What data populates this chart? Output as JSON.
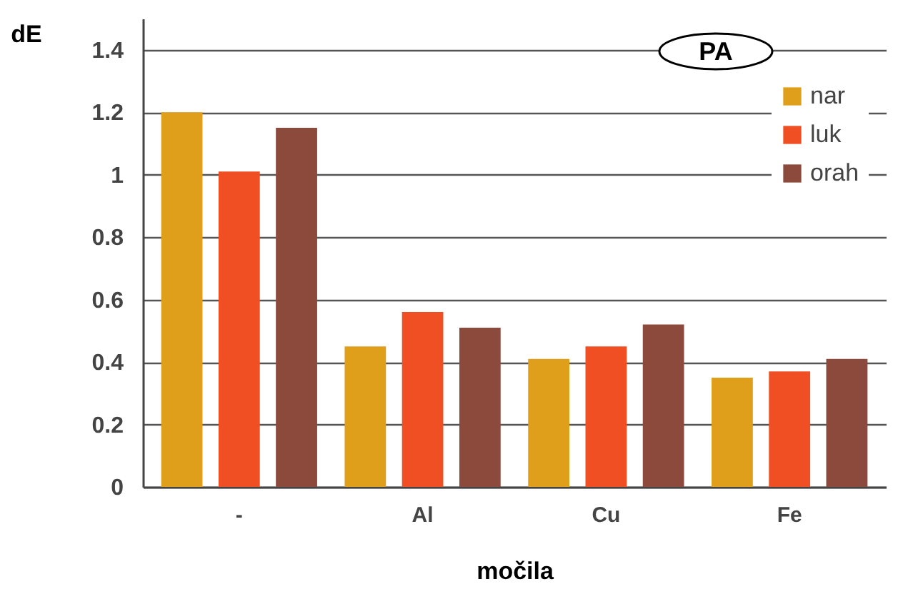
{
  "chart_data": {
    "type": "bar",
    "xlabel": "močila",
    "ylabel": "dE",
    "annotations": [
      "PA"
    ],
    "categories": [
      "-",
      "Al",
      "Cu",
      "Fe"
    ],
    "series": [
      {
        "name": "nar",
        "color": "#e09f1a",
        "values": [
          1.2,
          0.45,
          0.41,
          0.35
        ]
      },
      {
        "name": "luk",
        "color": "#f04e23",
        "values": [
          1.01,
          0.56,
          0.45,
          0.37
        ]
      },
      {
        "name": "orah",
        "color": "#8b4a3c",
        "values": [
          1.15,
          0.51,
          0.52,
          0.41
        ]
      }
    ],
    "ylim": [
      0,
      1.5
    ],
    "yticks": [
      0,
      0.2,
      0.4,
      0.6,
      0.8,
      1,
      1.2,
      1.4
    ],
    "grid": "y",
    "legend": "top right"
  }
}
